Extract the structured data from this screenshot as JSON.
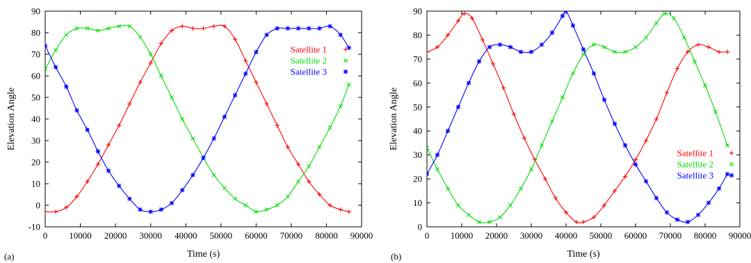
{
  "figure": {
    "panels": [
      {
        "tag": "(a)"
      },
      {
        "tag": "(b)"
      }
    ]
  },
  "chart_data": [
    {
      "type": "line",
      "panel_label": "(a)",
      "xlabel": "Time (s)",
      "ylabel": "Elevation Angle",
      "xlim": [
        0,
        90000
      ],
      "ylim": [
        -10,
        90
      ],
      "xticks": [
        0,
        10000,
        20000,
        30000,
        40000,
        50000,
        60000,
        70000,
        80000,
        90000
      ],
      "yticks": [
        -10,
        0,
        10,
        20,
        30,
        40,
        50,
        60,
        70,
        80,
        90
      ],
      "grid": false,
      "legend": "top-right",
      "series": [
        {
          "name": "Satellite 1",
          "color": "#ff0000",
          "marker": "plus",
          "x": [
            0,
            3000,
            6000,
            9000,
            12000,
            15000,
            18000,
            21000,
            24000,
            27000,
            30000,
            33000,
            36000,
            39000,
            42000,
            45000,
            48000,
            51000,
            54000,
            57000,
            60000,
            63000,
            66000,
            69000,
            72000,
            75000,
            78000,
            81000,
            84000,
            86400
          ],
          "y": [
            -3,
            -3,
            -1,
            4,
            11,
            19,
            28,
            37,
            47,
            57,
            66,
            75,
            81,
            83,
            82,
            82,
            83,
            83,
            77,
            67,
            57,
            47,
            37,
            27,
            19,
            11,
            5,
            0,
            -2,
            -3
          ]
        },
        {
          "name": "Satellite 2",
          "color": "#00dd00",
          "marker": "cross",
          "x": [
            0,
            3000,
            6000,
            9000,
            12000,
            15000,
            18000,
            21000,
            24000,
            27000,
            30000,
            33000,
            36000,
            39000,
            42000,
            45000,
            48000,
            51000,
            54000,
            57000,
            60000,
            63000,
            66000,
            69000,
            72000,
            75000,
            78000,
            81000,
            84000,
            86400
          ],
          "y": [
            63,
            72,
            79,
            82,
            82,
            81,
            82,
            83,
            83,
            78,
            70,
            60,
            50,
            40,
            31,
            22,
            14,
            8,
            3,
            0,
            -3,
            -2,
            0,
            4,
            11,
            18,
            27,
            36,
            46,
            56
          ]
        },
        {
          "name": "Satellite 3",
          "color": "#0000ff",
          "marker": "star",
          "x": [
            0,
            3000,
            6000,
            9000,
            12000,
            15000,
            18000,
            21000,
            24000,
            27000,
            30000,
            33000,
            36000,
            39000,
            42000,
            45000,
            48000,
            51000,
            54000,
            57000,
            60000,
            63000,
            66000,
            69000,
            72000,
            75000,
            78000,
            81000,
            84000,
            86400
          ],
          "y": [
            74,
            64,
            55,
            44,
            35,
            25,
            16,
            9,
            3,
            -2,
            -3,
            -2,
            1,
            7,
            14,
            22,
            31,
            41,
            51,
            61,
            71,
            79,
            82,
            82,
            82,
            82,
            82,
            83,
            79,
            73
          ]
        }
      ]
    },
    {
      "type": "line",
      "panel_label": "(b)",
      "xlabel": "Time (s)",
      "ylabel": "Elevation Angle",
      "xlim": [
        0,
        90000
      ],
      "ylim": [
        0,
        90
      ],
      "xticks": [
        0,
        10000,
        20000,
        30000,
        40000,
        50000,
        60000,
        70000,
        80000,
        90000
      ],
      "yticks": [
        0,
        10,
        20,
        30,
        40,
        50,
        60,
        70,
        80,
        90
      ],
      "grid": false,
      "legend": "right",
      "series": [
        {
          "name": "Satellite 1",
          "color": "#ff0000",
          "marker": "plus",
          "x": [
            0,
            3000,
            6000,
            9000,
            10800,
            13000,
            16000,
            19000,
            22000,
            25000,
            28000,
            31000,
            34000,
            37000,
            40000,
            43000,
            45000,
            48000,
            51000,
            54000,
            57000,
            60000,
            63000,
            66000,
            69000,
            72000,
            75000,
            78000,
            81000,
            84000,
            86400
          ],
          "y": [
            73,
            75,
            80,
            86,
            89,
            87,
            78,
            68,
            58,
            47,
            37,
            28,
            20,
            12,
            6,
            2,
            2,
            4,
            9,
            15,
            21,
            28,
            36,
            45,
            56,
            66,
            73,
            76,
            75,
            73,
            73
          ]
        },
        {
          "name": "Satellite 2",
          "color": "#00dd00",
          "marker": "cross",
          "x": [
            0,
            3000,
            6000,
            9000,
            12000,
            15000,
            18000,
            21000,
            24000,
            27000,
            30000,
            33000,
            36000,
            39000,
            42000,
            45000,
            48000,
            51000,
            54000,
            57000,
            60000,
            63000,
            66000,
            68400,
            71000,
            74000,
            77000,
            80000,
            83000,
            86400
          ],
          "y": [
            33,
            24,
            16,
            9,
            5,
            2,
            2,
            4,
            9,
            16,
            24,
            34,
            44,
            54,
            64,
            72,
            76,
            75,
            73,
            73,
            75,
            79,
            85,
            89,
            87,
            79,
            69,
            59,
            48,
            34
          ]
        },
        {
          "name": "Satellite 3",
          "color": "#0000ff",
          "marker": "star",
          "x": [
            0,
            3000,
            6000,
            9000,
            12000,
            15000,
            18000,
            21000,
            24000,
            27000,
            30000,
            33000,
            36000,
            39000,
            40000,
            42000,
            45000,
            48000,
            51000,
            54000,
            57000,
            60000,
            63000,
            66000,
            69000,
            72000,
            75000,
            78000,
            81000,
            84000,
            86400
          ],
          "y": [
            22,
            30,
            40,
            50,
            60,
            69,
            75,
            76,
            75,
            73,
            73,
            76,
            81,
            88,
            90,
            84,
            74,
            64,
            53,
            43,
            34,
            26,
            19,
            12,
            6,
            3,
            2,
            5,
            10,
            16,
            22
          ]
        }
      ]
    }
  ]
}
